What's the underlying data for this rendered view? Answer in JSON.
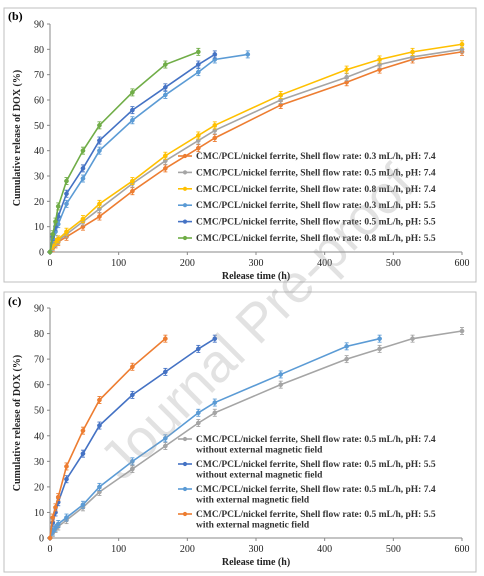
{
  "watermark": "Journal Pre-proof",
  "colors": {
    "orange": "#ED7D31",
    "gray": "#A5A5A5",
    "yellow": "#FFC000",
    "lightblue": "#5B9BD5",
    "darkblue": "#4472C4",
    "green": "#70AD47"
  },
  "chart_data": [
    {
      "panel": "(b)",
      "type": "line",
      "xlabel": "Release time (h)",
      "ylabel": "Cumulative release of DOX (%)",
      "xlim": [
        0,
        600
      ],
      "ylim": [
        0,
        90
      ],
      "xticks": [
        0,
        100,
        200,
        300,
        400,
        500,
        600
      ],
      "yticks": [
        0,
        10,
        20,
        30,
        40,
        50,
        60,
        70,
        80,
        90
      ],
      "legend": "bottom-right",
      "series": [
        {
          "name": "CMC/PCL/nickel ferrite, Shell flow rate: 0.3 mL/h, pH: 7.4",
          "color": "orange",
          "x": [
            0,
            4,
            8,
            12,
            24,
            48,
            72,
            120,
            168,
            216,
            240,
            336,
            432,
            480,
            528,
            600
          ],
          "y": [
            0,
            1.5,
            3,
            4,
            6,
            10,
            14,
            24,
            33,
            41,
            45,
            58,
            67,
            72,
            76,
            79
          ]
        },
        {
          "name": "CMC/PCL/nickel ferrite, Shell flow rate: 0.5 mL/h, pH: 7.4",
          "color": "gray",
          "x": [
            0,
            4,
            8,
            12,
            24,
            48,
            72,
            120,
            168,
            216,
            240,
            336,
            432,
            480,
            528,
            600
          ],
          "y": [
            0,
            2,
            3.5,
            4.5,
            7,
            12,
            17,
            27,
            36,
            44,
            48,
            60,
            69,
            74,
            77,
            80
          ]
        },
        {
          "name": "CMC/PCL/nickel ferrite, Shell flow rate: 0.8 mL/h, pH: 7.4",
          "color": "yellow",
          "x": [
            0,
            4,
            8,
            12,
            24,
            48,
            72,
            120,
            168,
            216,
            240,
            336,
            432,
            480,
            528,
            600
          ],
          "y": [
            0,
            2.5,
            4,
            5,
            8,
            13,
            19,
            28,
            38,
            46,
            50,
            62,
            72,
            76,
            79,
            82
          ]
        },
        {
          "name": "CMC/PCL/nickel ferrite, Shell flow rate: 0.3 mL/h, pH: 5.5",
          "color": "lightblue",
          "x": [
            0,
            4,
            8,
            12,
            24,
            48,
            72,
            120,
            168,
            216,
            240,
            288
          ],
          "y": [
            0,
            5,
            8,
            11,
            19,
            29,
            40,
            52,
            62,
            71,
            76,
            78
          ]
        },
        {
          "name": "CMC/PCL/nickel ferrite, Shell flow rate: 0.5 mL/h, pH: 5.5",
          "color": "darkblue",
          "x": [
            0,
            4,
            8,
            12,
            24,
            48,
            72,
            120,
            168,
            216,
            240
          ],
          "y": [
            0,
            6,
            10,
            14,
            23,
            33,
            44,
            56,
            65,
            74,
            78
          ]
        },
        {
          "name": "CMC/PCL/nickel ferrite, Shell flow rate: 0.8 mL/h, pH: 5.5",
          "color": "green",
          "x": [
            0,
            4,
            8,
            12,
            24,
            48,
            72,
            120,
            168,
            216
          ],
          "y": [
            0,
            7,
            12,
            18,
            28,
            40,
            50,
            63,
            74,
            79
          ]
        }
      ]
    },
    {
      "panel": "(c)",
      "type": "line",
      "xlabel": "Release time (h)",
      "ylabel": "Cumulative release of DOX (%)",
      "xlim": [
        0,
        600
      ],
      "ylim": [
        0,
        90
      ],
      "xticks": [
        0,
        100,
        200,
        300,
        400,
        500,
        600
      ],
      "yticks": [
        0,
        10,
        20,
        30,
        40,
        50,
        60,
        70,
        80,
        90
      ],
      "legend": "bottom-right",
      "series": [
        {
          "name": "CMC/PCL/nickel ferrite, Shell flow rate: 0.5 mL/h,  pH: 7.4",
          "name2": "without external magnetic field",
          "color": "gray",
          "x": [
            0,
            4,
            8,
            12,
            24,
            48,
            72,
            120,
            168,
            216,
            240,
            336,
            432,
            480,
            528,
            600
          ],
          "y": [
            0,
            2,
            3.5,
            4.5,
            7,
            12,
            18,
            27,
            36,
            45,
            49,
            60,
            70,
            74,
            78,
            81
          ]
        },
        {
          "name": "CMC/PCL/nickel ferrite, Shell flow rate: 0.5 mL/h, pH: 5.5",
          "name2": "without external magnetic field",
          "color": "darkblue",
          "x": [
            0,
            4,
            8,
            12,
            24,
            48,
            72,
            120,
            168,
            216,
            240
          ],
          "y": [
            0,
            6,
            10,
            14,
            23,
            33,
            44,
            56,
            65,
            74,
            78
          ]
        },
        {
          "name": "CMC/PCL/nickel ferrite, Shell flow rate: 0.5 mL/h, pH: 7.4",
          "name2": "with external magnetic field",
          "color": "lightblue",
          "x": [
            0,
            4,
            8,
            12,
            24,
            48,
            72,
            120,
            168,
            216,
            240,
            336,
            432,
            480
          ],
          "y": [
            0,
            2.5,
            4,
            5.5,
            8,
            13,
            20,
            30,
            39,
            49,
            53,
            64,
            75,
            78
          ]
        },
        {
          "name": "CMC/PCL/nickel ferrite, Shell flow rate: 0.5 mL/h, pH: 5.5",
          "name2": "with external magnetic field",
          "color": "orange",
          "x": [
            0,
            4,
            8,
            12,
            24,
            48,
            72,
            120,
            168
          ],
          "y": [
            0,
            8,
            12,
            16,
            28,
            42,
            54,
            67,
            78
          ]
        }
      ]
    }
  ]
}
